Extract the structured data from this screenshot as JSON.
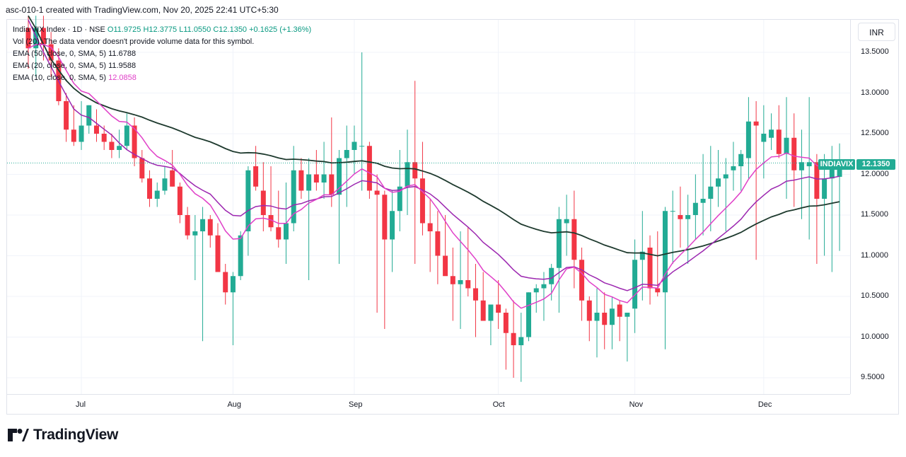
{
  "header": {
    "text": "asc-010-1 created with TradingView.com, Nov 20, 2025 22:41 UTC+5:30"
  },
  "legend": {
    "title": "India VIX Index · 1D · NSE",
    "ohlc": "O11.9725 H12.3775 L11.0550 C12.1350 +0.1625 (+1.36%)",
    "vol": "Vol (20): The data vendor doesn't provide volume data for this symbol.",
    "ema50_label": "EMA (50, close, 0, SMA, 5)",
    "ema50_value": "11.6788",
    "ema20_label": "EMA (20, close, 0, SMA, 5)",
    "ema20_value": "11.9588",
    "ema10_label": "EMA (10, close, 0, SMA, 5)",
    "ema10_value": "12.0858"
  },
  "currency_button": "INR",
  "symbol_label": "INDIAVIX",
  "price_label": "12.1350",
  "brand": "TradingView",
  "colors": {
    "up": "#22ab94",
    "down": "#f23645",
    "ema50": "#1e3a2e",
    "ema20": "#9c27b0",
    "ema10": "#e040c8"
  },
  "chart_data": {
    "type": "candlestick",
    "title": "India VIX Index · 1D · NSE",
    "ylim": [
      9.3,
      13.9
    ],
    "y_ticks": [
      "13.5000",
      "13.0000",
      "12.5000",
      "12.0000",
      "11.5000",
      "11.0000",
      "10.5000",
      "10.0000",
      "9.5000"
    ],
    "x_ticks": [
      {
        "label": "Jul",
        "index": 7
      },
      {
        "label": "Aug",
        "index": 27
      },
      {
        "label": "Sep",
        "index": 43
      },
      {
        "label": "Oct",
        "index": 62
      },
      {
        "label": "Nov",
        "index": 80
      },
      {
        "label": "Dec",
        "index": 97
      }
    ],
    "candles": [
      [
        13.8,
        13.95,
        13.3,
        13.55
      ],
      [
        13.55,
        13.95,
        13.2,
        13.8
      ],
      [
        13.8,
        13.95,
        13.4,
        13.6
      ],
      [
        13.6,
        13.75,
        13.2,
        13.4
      ],
      [
        13.4,
        13.55,
        12.85,
        12.9
      ],
      [
        12.9,
        13.0,
        12.4,
        12.55
      ],
      [
        12.55,
        12.85,
        12.35,
        12.4
      ],
      [
        12.4,
        12.9,
        12.3,
        12.6
      ],
      [
        12.6,
        12.85,
        12.5,
        12.85
      ],
      [
        12.6,
        12.8,
        12.4,
        12.5
      ],
      [
        12.5,
        12.6,
        12.3,
        12.4
      ],
      [
        12.4,
        12.5,
        12.2,
        12.3
      ],
      [
        12.3,
        12.55,
        12.2,
        12.35
      ],
      [
        12.35,
        12.75,
        12.3,
        12.6
      ],
      [
        12.6,
        12.7,
        12.1,
        12.2
      ],
      [
        12.2,
        12.3,
        11.9,
        11.95
      ],
      [
        11.95,
        12.05,
        11.6,
        11.7
      ],
      [
        11.7,
        11.9,
        11.6,
        11.8
      ],
      [
        11.8,
        12.1,
        11.75,
        11.95
      ],
      [
        12.05,
        12.3,
        11.85,
        11.85
      ],
      [
        11.85,
        11.9,
        11.4,
        11.5
      ],
      [
        11.5,
        11.6,
        11.2,
        11.25
      ],
      [
        11.25,
        11.5,
        10.7,
        11.3
      ],
      [
        11.3,
        11.6,
        9.95,
        11.45
      ],
      [
        11.45,
        11.5,
        11.1,
        11.25
      ],
      [
        11.25,
        11.4,
        10.8,
        10.8
      ],
      [
        10.8,
        10.9,
        10.4,
        10.55
      ],
      [
        10.55,
        10.8,
        9.9,
        10.75
      ],
      [
        10.75,
        11.3,
        10.7,
        11.25
      ],
      [
        11.3,
        12.1,
        11.0,
        12.05
      ],
      [
        12.1,
        12.35,
        11.8,
        11.85
      ],
      [
        11.8,
        12.15,
        11.3,
        11.5
      ],
      [
        11.5,
        12.1,
        11.3,
        11.35
      ],
      [
        11.35,
        11.8,
        11.1,
        11.2
      ],
      [
        11.2,
        11.9,
        10.9,
        11.4
      ]
    ],
    "candles_b": [
      [
        11.4,
        12.35,
        11.3,
        12.05
      ],
      [
        12.05,
        12.2,
        11.7,
        11.8
      ],
      [
        11.8,
        12.2,
        10.7,
        12.0
      ],
      [
        12.0,
        12.3,
        11.8,
        11.9
      ],
      [
        11.9,
        12.4,
        11.7,
        12.0
      ],
      [
        12.0,
        12.7,
        11.6,
        11.75
      ],
      [
        11.75,
        12.3,
        10.9,
        12.2
      ],
      [
        12.2,
        12.6,
        11.6,
        12.3
      ],
      [
        12.3,
        12.6,
        12.0,
        12.4
      ],
      [
        12.35,
        13.5,
        11.8,
        12.35
      ],
      [
        12.35,
        12.4,
        11.7,
        11.8
      ],
      [
        11.8,
        12.0,
        10.3,
        11.75
      ],
      [
        11.75,
        11.8,
        10.1,
        11.2
      ],
      [
        11.2,
        11.8,
        10.8,
        11.55
      ],
      [
        11.55,
        12.3,
        11.3,
        11.85
      ],
      [
        11.85,
        12.55,
        11.5,
        12.15
      ],
      [
        12.15,
        13.15,
        10.9,
        11.95
      ],
      [
        11.95,
        12.4,
        11.25,
        11.4
      ],
      [
        11.4,
        11.7,
        10.8,
        11.3
      ],
      [
        11.3,
        11.55,
        10.65,
        11.0
      ],
      [
        11.0,
        11.5,
        10.8,
        10.75
      ],
      [
        10.75,
        11.1,
        10.2,
        10.65
      ],
      [
        10.65,
        11.3,
        10.1,
        10.7
      ],
      [
        10.7,
        11.35,
        10.5,
        10.6
      ],
      [
        10.6,
        10.9,
        10.0,
        10.45
      ],
      [
        10.45,
        10.8,
        10.25,
        10.2
      ],
      [
        10.2,
        10.4,
        9.9,
        10.4
      ],
      [
        10.4,
        10.7,
        10.1,
        10.3
      ],
      [
        10.3,
        10.35,
        9.6,
        10.05
      ],
      [
        10.05,
        10.45,
        9.5,
        9.9
      ],
      [
        9.9,
        10.3,
        9.45,
        10.0
      ],
      [
        10.0,
        10.55,
        9.95,
        10.55
      ],
      [
        10.55,
        10.65,
        10.3,
        10.6
      ],
      [
        10.6,
        10.8,
        10.2,
        10.65
      ],
      [
        10.65,
        10.9,
        10.45,
        10.85
      ]
    ],
    "candles_c": [
      [
        10.85,
        11.6,
        10.3,
        11.45
      ],
      [
        11.4,
        11.75,
        11.0,
        11.45
      ],
      [
        11.45,
        11.8,
        10.6,
        10.95
      ],
      [
        10.95,
        11.1,
        10.2,
        10.45
      ],
      [
        10.45,
        10.5,
        9.95,
        10.2
      ],
      [
        10.2,
        10.6,
        9.75,
        10.3
      ],
      [
        10.3,
        10.55,
        9.85,
        10.15
      ],
      [
        10.15,
        10.5,
        9.85,
        10.35
      ],
      [
        10.4,
        10.45,
        9.95,
        10.25
      ],
      [
        10.25,
        10.3,
        9.7,
        10.3
      ],
      [
        10.35,
        11.2,
        10.05,
        10.95
      ],
      [
        10.95,
        11.55,
        10.45,
        11.05
      ],
      [
        11.1,
        11.25,
        10.4,
        10.6
      ],
      [
        10.6,
        11.3,
        10.5,
        10.55
      ],
      [
        10.55,
        11.6,
        9.85,
        11.55
      ],
      [
        11.55,
        11.8,
        10.9,
        11.55
      ],
      [
        11.5,
        11.85,
        11.1,
        11.45
      ],
      [
        11.45,
        11.75,
        10.9,
        11.5
      ],
      [
        11.5,
        12.0,
        11.2,
        11.65
      ],
      [
        11.65,
        12.25,
        11.25,
        11.7
      ],
      [
        11.7,
        12.35,
        11.3,
        11.85
      ],
      [
        11.85,
        12.3,
        11.6,
        11.95
      ],
      [
        11.95,
        12.2,
        11.3,
        12.0
      ],
      [
        12.05,
        12.4,
        11.8,
        12.1
      ],
      [
        12.1,
        12.3,
        11.8,
        12.25
      ],
      [
        12.2,
        12.95,
        11.95,
        12.65
      ],
      [
        12.65,
        12.9,
        10.95,
        12.6
      ],
      [
        12.4,
        12.85,
        11.95,
        12.5
      ],
      [
        12.45,
        12.75,
        12.3,
        12.55
      ],
      [
        12.55,
        12.85,
        12.2,
        12.25
      ]
    ],
    "candles_d": [
      [
        12.25,
        12.95,
        11.7,
        12.45
      ],
      [
        12.45,
        12.75,
        11.6,
        12.05
      ],
      [
        12.05,
        12.55,
        11.45,
        12.15
      ],
      [
        12.1,
        12.95,
        11.2,
        12.15
      ],
      [
        12.15,
        12.25,
        10.9,
        11.7
      ],
      [
        11.7,
        12.25,
        11.0,
        11.95
      ],
      [
        11.95,
        12.35,
        10.8,
        12.1
      ],
      [
        11.97,
        12.38,
        11.06,
        12.14
      ]
    ],
    "ema50": [
      13.95,
      13.8,
      13.6,
      13.4,
      13.25,
      13.1,
      12.98,
      12.88,
      12.8,
      12.72,
      12.66,
      12.6,
      12.55,
      12.5,
      12.45,
      12.4,
      12.34,
      12.28,
      12.22,
      12.16,
      12.1,
      12.04,
      11.98,
      11.94,
      11.9,
      11.87,
      11.85,
      11.84,
      11.84,
      11.84,
      11.84,
      11.84,
      11.84,
      11.84,
      11.84,
      11.84
    ],
    "ema20": [
      13.9,
      13.7,
      13.5,
      13.3,
      13.1,
      12.9,
      12.7,
      12.6,
      12.55,
      12.45,
      12.35,
      12.25,
      12.1,
      11.95,
      11.85,
      11.78,
      11.72,
      11.68,
      11.66,
      11.64,
      11.55,
      11.45,
      11.35,
      11.25,
      11.2,
      11.05,
      10.95,
      10.9,
      10.92,
      11.0,
      11.1,
      11.2,
      11.3,
      11.35,
      11.4
    ]
  }
}
